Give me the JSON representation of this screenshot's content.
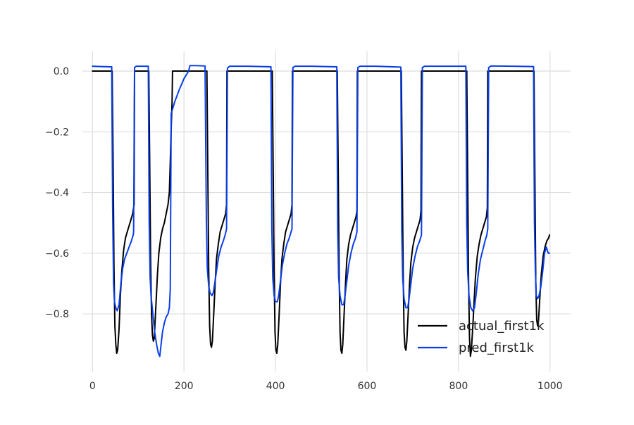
{
  "chart_data": {
    "type": "line",
    "title": "",
    "xlabel": "",
    "ylabel": "",
    "xlim": [
      -22,
      1045
    ],
    "ylim": [
      -0.99,
      0.065
    ],
    "xticks": [
      0,
      200,
      400,
      600,
      800,
      1000
    ],
    "yticks": [
      0.0,
      -0.2,
      -0.4,
      -0.6,
      -0.8
    ],
    "xtick_labels": [
      "0",
      "200",
      "400",
      "600",
      "800",
      "1000"
    ],
    "ytick_labels": [
      "0.0",
      "−0.2",
      "−0.4",
      "−0.6",
      "−0.8"
    ],
    "grid": true,
    "legend_position": "lower-right",
    "series": [
      {
        "name": "actual_first1k",
        "color": "#000000",
        "points": [
          [
            0,
            0.0
          ],
          [
            43,
            0.0
          ],
          [
            45,
            -0.28
          ],
          [
            47,
            -0.65
          ],
          [
            49,
            -0.84
          ],
          [
            51,
            -0.9
          ],
          [
            53,
            -0.93
          ],
          [
            55,
            -0.92
          ],
          [
            58,
            -0.85
          ],
          [
            61,
            -0.74
          ],
          [
            64,
            -0.66
          ],
          [
            68,
            -0.59
          ],
          [
            72,
            -0.55
          ],
          [
            76,
            -0.53
          ],
          [
            80,
            -0.51
          ],
          [
            84,
            -0.49
          ],
          [
            88,
            -0.47
          ],
          [
            91,
            -0.44
          ],
          [
            92,
            0.0
          ],
          [
            123,
            0.0
          ],
          [
            125,
            -0.3
          ],
          [
            127,
            -0.62
          ],
          [
            129,
            -0.8
          ],
          [
            131,
            -0.87
          ],
          [
            133,
            -0.89
          ],
          [
            135,
            -0.88
          ],
          [
            137,
            -0.82
          ],
          [
            139,
            -0.76
          ],
          [
            142,
            -0.67
          ],
          [
            145,
            -0.6
          ],
          [
            149,
            -0.55
          ],
          [
            153,
            -0.52
          ],
          [
            157,
            -0.5
          ],
          [
            161,
            -0.47
          ],
          [
            165,
            -0.44
          ],
          [
            168,
            -0.4
          ],
          [
            170,
            -0.3
          ],
          [
            172,
            -0.19
          ],
          [
            174,
            -0.1
          ],
          [
            175,
            0.0
          ],
          [
            250,
            0.0
          ],
          [
            252,
            -0.33
          ],
          [
            254,
            -0.66
          ],
          [
            256,
            -0.84
          ],
          [
            258,
            -0.9
          ],
          [
            260,
            -0.91
          ],
          [
            262,
            -0.89
          ],
          [
            265,
            -0.8
          ],
          [
            268,
            -0.7
          ],
          [
            271,
            -0.62
          ],
          [
            275,
            -0.57
          ],
          [
            279,
            -0.53
          ],
          [
            283,
            -0.51
          ],
          [
            287,
            -0.49
          ],
          [
            291,
            -0.47
          ],
          [
            293,
            -0.44
          ],
          [
            294,
            0.0
          ],
          [
            393,
            0.0
          ],
          [
            395,
            -0.32
          ],
          [
            397,
            -0.66
          ],
          [
            399,
            -0.86
          ],
          [
            401,
            -0.92
          ],
          [
            403,
            -0.93
          ],
          [
            405,
            -0.9
          ],
          [
            408,
            -0.8
          ],
          [
            411,
            -0.7
          ],
          [
            414,
            -0.62
          ],
          [
            418,
            -0.57
          ],
          [
            422,
            -0.53
          ],
          [
            426,
            -0.51
          ],
          [
            430,
            -0.49
          ],
          [
            434,
            -0.47
          ],
          [
            436,
            -0.44
          ],
          [
            437,
            0.0
          ],
          [
            535,
            0.0
          ],
          [
            537,
            -0.33
          ],
          [
            539,
            -0.66
          ],
          [
            541,
            -0.86
          ],
          [
            543,
            -0.92
          ],
          [
            545,
            -0.93
          ],
          [
            547,
            -0.9
          ],
          [
            550,
            -0.8
          ],
          [
            553,
            -0.7
          ],
          [
            556,
            -0.62
          ],
          [
            560,
            -0.57
          ],
          [
            564,
            -0.54
          ],
          [
            568,
            -0.52
          ],
          [
            572,
            -0.5
          ],
          [
            576,
            -0.48
          ],
          [
            578,
            -0.46
          ],
          [
            579,
            0.0
          ],
          [
            675,
            0.0
          ],
          [
            677,
            -0.33
          ],
          [
            679,
            -0.66
          ],
          [
            681,
            -0.86
          ],
          [
            683,
            -0.91
          ],
          [
            685,
            -0.92
          ],
          [
            687,
            -0.89
          ],
          [
            690,
            -0.8
          ],
          [
            693,
            -0.7
          ],
          [
            696,
            -0.63
          ],
          [
            700,
            -0.58
          ],
          [
            704,
            -0.55
          ],
          [
            708,
            -0.53
          ],
          [
            712,
            -0.51
          ],
          [
            716,
            -0.49
          ],
          [
            718,
            -0.46
          ],
          [
            719,
            0.0
          ],
          [
            818,
            0.0
          ],
          [
            820,
            -0.35
          ],
          [
            822,
            -0.7
          ],
          [
            824,
            -0.88
          ],
          [
            826,
            -0.94
          ],
          [
            828,
            -0.92
          ],
          [
            831,
            -0.85
          ],
          [
            834,
            -0.76
          ],
          [
            837,
            -0.68
          ],
          [
            841,
            -0.61
          ],
          [
            845,
            -0.57
          ],
          [
            849,
            -0.54
          ],
          [
            853,
            -0.52
          ],
          [
            857,
            -0.5
          ],
          [
            861,
            -0.48
          ],
          [
            863,
            -0.45
          ],
          [
            864,
            0.0
          ],
          [
            965,
            0.0
          ],
          [
            967,
            -0.35
          ],
          [
            969,
            -0.7
          ],
          [
            971,
            -0.82
          ],
          [
            973,
            -0.84
          ],
          [
            975,
            -0.82
          ],
          [
            978,
            -0.74
          ],
          [
            981,
            -0.67
          ],
          [
            985,
            -0.61
          ],
          [
            989,
            -0.58
          ],
          [
            993,
            -0.56
          ],
          [
            997,
            -0.55
          ],
          [
            999,
            -0.54
          ]
        ]
      },
      {
        "name": "pred_first1k",
        "color": "#0a3fe8",
        "points": [
          [
            0,
            0.016
          ],
          [
            20,
            0.015
          ],
          [
            42,
            0.014
          ],
          [
            44,
            -0.45
          ],
          [
            46,
            -0.7
          ],
          [
            48,
            -0.76
          ],
          [
            51,
            -0.78
          ],
          [
            54,
            -0.79
          ],
          [
            58,
            -0.77
          ],
          [
            62,
            -0.7
          ],
          [
            66,
            -0.65
          ],
          [
            70,
            -0.62
          ],
          [
            75,
            -0.6
          ],
          [
            80,
            -0.58
          ],
          [
            85,
            -0.56
          ],
          [
            89,
            -0.54
          ],
          [
            90,
            -0.53
          ],
          [
            92,
            0.012
          ],
          [
            96,
            0.016
          ],
          [
            122,
            0.016
          ],
          [
            124,
            -0.5
          ],
          [
            126,
            -0.68
          ],
          [
            128,
            -0.74
          ],
          [
            132,
            -0.8
          ],
          [
            136,
            -0.86
          ],
          [
            140,
            -0.9
          ],
          [
            144,
            -0.93
          ],
          [
            147,
            -0.94
          ],
          [
            150,
            -0.9
          ],
          [
            153,
            -0.86
          ],
          [
            157,
            -0.83
          ],
          [
            161,
            -0.81
          ],
          [
            165,
            -0.8
          ],
          [
            168,
            -0.78
          ],
          [
            170,
            -0.72
          ],
          [
            172,
            -0.14
          ],
          [
            180,
            -0.1
          ],
          [
            190,
            -0.06
          ],
          [
            200,
            -0.025
          ],
          [
            210,
            0.0
          ],
          [
            213,
            0.018
          ],
          [
            226,
            0.018
          ],
          [
            246,
            0.017
          ],
          [
            249,
            -0.5
          ],
          [
            251,
            -0.65
          ],
          [
            254,
            -0.71
          ],
          [
            257,
            -0.73
          ],
          [
            261,
            -0.74
          ],
          [
            264,
            -0.73
          ],
          [
            268,
            -0.69
          ],
          [
            272,
            -0.65
          ],
          [
            276,
            -0.61
          ],
          [
            281,
            -0.58
          ],
          [
            286,
            -0.56
          ],
          [
            290,
            -0.54
          ],
          [
            293,
            -0.52
          ],
          [
            295,
            0.01
          ],
          [
            300,
            0.016
          ],
          [
            340,
            0.016
          ],
          [
            390,
            0.014
          ],
          [
            392,
            -0.52
          ],
          [
            394,
            -0.68
          ],
          [
            397,
            -0.74
          ],
          [
            400,
            -0.76
          ],
          [
            404,
            -0.76
          ],
          [
            407,
            -0.74
          ],
          [
            411,
            -0.69
          ],
          [
            415,
            -0.64
          ],
          [
            420,
            -0.6
          ],
          [
            425,
            -0.57
          ],
          [
            430,
            -0.55
          ],
          [
            434,
            -0.53
          ],
          [
            436,
            -0.52
          ],
          [
            438,
            0.012
          ],
          [
            443,
            0.016
          ],
          [
            480,
            0.016
          ],
          [
            534,
            0.014
          ],
          [
            536,
            -0.52
          ],
          [
            538,
            -0.68
          ],
          [
            541,
            -0.74
          ],
          [
            545,
            -0.77
          ],
          [
            549,
            -0.77
          ],
          [
            552,
            -0.74
          ],
          [
            556,
            -0.69
          ],
          [
            560,
            -0.64
          ],
          [
            565,
            -0.6
          ],
          [
            570,
            -0.57
          ],
          [
            575,
            -0.55
          ],
          [
            578,
            -0.53
          ],
          [
            580,
            0.012
          ],
          [
            585,
            0.016
          ],
          [
            620,
            0.016
          ],
          [
            674,
            0.013
          ],
          [
            676,
            -0.52
          ],
          [
            678,
            -0.68
          ],
          [
            681,
            -0.75
          ],
          [
            685,
            -0.78
          ],
          [
            689,
            -0.78
          ],
          [
            692,
            -0.75
          ],
          [
            696,
            -0.7
          ],
          [
            700,
            -0.65
          ],
          [
            705,
            -0.61
          ],
          [
            710,
            -0.58
          ],
          [
            715,
            -0.56
          ],
          [
            719,
            -0.54
          ],
          [
            721,
            0.012
          ],
          [
            726,
            0.016
          ],
          [
            760,
            0.016
          ],
          [
            816,
            0.016
          ],
          [
            818,
            -0.5
          ],
          [
            820,
            -0.66
          ],
          [
            823,
            -0.74
          ],
          [
            827,
            -0.78
          ],
          [
            831,
            -0.79
          ],
          [
            835,
            -0.78
          ],
          [
            839,
            -0.73
          ],
          [
            843,
            -0.67
          ],
          [
            848,
            -0.62
          ],
          [
            853,
            -0.59
          ],
          [
            858,
            -0.56
          ],
          [
            862,
            -0.54
          ],
          [
            864,
            -0.52
          ],
          [
            866,
            0.012
          ],
          [
            871,
            0.017
          ],
          [
            920,
            0.016
          ],
          [
            964,
            0.015
          ],
          [
            966,
            -0.5
          ],
          [
            968,
            -0.66
          ],
          [
            970,
            -0.74
          ],
          [
            973,
            -0.75
          ],
          [
            976,
            -0.74
          ],
          [
            980,
            -0.71
          ],
          [
            984,
            -0.66
          ],
          [
            988,
            -0.6
          ],
          [
            992,
            -0.58
          ],
          [
            996,
            -0.6
          ],
          [
            999,
            -0.6
          ]
        ]
      }
    ]
  }
}
